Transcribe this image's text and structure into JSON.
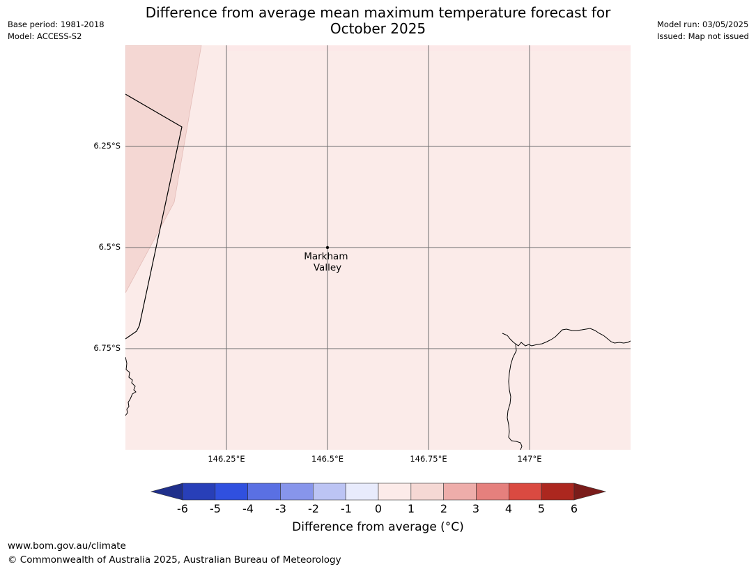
{
  "title": "Difference from average mean maximum temperature forecast for October 2025",
  "meta_left": {
    "base_period": "Base period: 1981-2018",
    "model": "Model: ACCESS-S2"
  },
  "meta_right": {
    "model_run": "Model run: 03/05/2025",
    "issued": "Issued: Map not issued"
  },
  "map": {
    "place": {
      "name_line1": "Markham",
      "name_line2": "Valley",
      "lat": -6.5,
      "lon": 146.5
    },
    "lat_ticks": [
      "6.25°S",
      "6.5°S",
      "6.75°S"
    ],
    "lon_ticks": [
      "146.25°E",
      "146.5°E",
      "146.75°E",
      "147°E"
    ],
    "fill_colors": {
      "anomaly_0_1": "#fbebe9",
      "anomaly_1_2": "#f4d7d3"
    }
  },
  "colorbar": {
    "ticks": [
      "-6",
      "-5",
      "-4",
      "-3",
      "-2",
      "-1",
      "0",
      "1",
      "2",
      "3",
      "4",
      "5",
      "6"
    ],
    "colors": [
      "#1f2f8b",
      "#283fb8",
      "#3050df",
      "#5a70e3",
      "#8795eb",
      "#bcc4f4",
      "#e8ebfc",
      "#fcebe9",
      "#f5d8d4",
      "#eeadaa",
      "#e5807d",
      "#da4a41",
      "#ac271f",
      "#7a1c1a"
    ],
    "label": "Difference from average (°C)"
  },
  "footer": {
    "url": "www.bom.gov.au/climate",
    "copyright": "© Commonwealth of Australia 2025, Australian Bureau of Meteorology"
  }
}
